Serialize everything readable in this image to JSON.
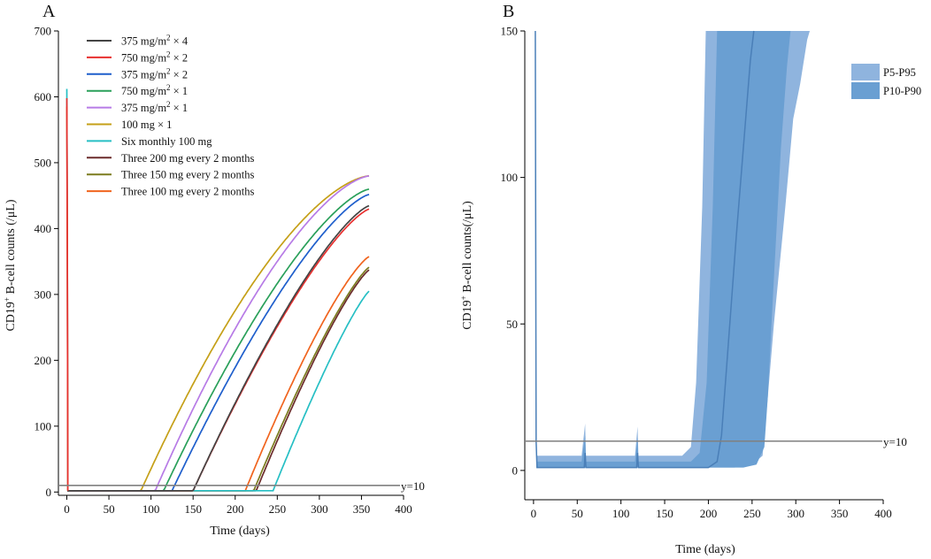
{
  "chart_data": [
    {
      "panel": "A",
      "type": "line",
      "xlabel": "Time (days)",
      "ylabel_main": "CD19",
      "ylabel_sup": "+",
      "ylabel_rest": " B-cell counts (/μL)",
      "xlim": [
        -10,
        400
      ],
      "ylim": [
        -5,
        700
      ],
      "xticks": [
        0,
        50,
        100,
        150,
        200,
        250,
        300,
        350,
        400
      ],
      "yticks": [
        0,
        100,
        200,
        300,
        400,
        500,
        600,
        700
      ],
      "reference_line": {
        "y": 10,
        "label": "y=10",
        "color": "#808080"
      },
      "legend_position": "top-left",
      "series": [
        {
          "name": "375 mg/m² × 4",
          "color": "#444444",
          "baseline": 2,
          "t_start": 150,
          "rise_shape": 1.35,
          "t_end": 360,
          "y_end": 435
        },
        {
          "name": "750 mg/m² × 2",
          "color": "#e8302f",
          "baseline": 2,
          "t_start": 150,
          "rise_shape": 1.35,
          "t_end": 360,
          "y_end": 430
        },
        {
          "name": "375 mg/m² × 2",
          "color": "#1f5fcc",
          "baseline": 2,
          "t_start": 125,
          "rise_shape": 1.4,
          "t_end": 360,
          "y_end": 452
        },
        {
          "name": "750 mg/m² × 1",
          "color": "#2aa05a",
          "baseline": 2,
          "t_start": 115,
          "rise_shape": 1.45,
          "t_end": 360,
          "y_end": 460
        },
        {
          "name": "375 mg/m² × 1",
          "color": "#b77be6",
          "baseline": 2,
          "t_start": 105,
          "rise_shape": 1.55,
          "t_end": 360,
          "y_end": 480
        },
        {
          "name": "100 mg × 1",
          "color": "#c5a018",
          "baseline": 2,
          "t_start": 88,
          "rise_shape": 1.6,
          "t_end": 360,
          "y_end": 480
        },
        {
          "name": "Six monthly 100 mg",
          "color": "#26bfc4",
          "baseline": 2,
          "t_start": 245,
          "rise_shape": 1.2,
          "t_end": 360,
          "y_end": 306
        },
        {
          "name": "Three 200 mg every 2 months",
          "color": "#6b2b2b",
          "baseline": 2,
          "t_start": 225,
          "rise_shape": 1.25,
          "t_end": 360,
          "y_end": 338
        },
        {
          "name": "Three 150 mg every 2 months",
          "color": "#7b7b1e",
          "baseline": 2,
          "t_start": 222,
          "rise_shape": 1.25,
          "t_end": 360,
          "y_end": 342
        },
        {
          "name": "Three 100 mg every 2 months",
          "color": "#f0641e",
          "baseline": 2,
          "t_start": 212,
          "rise_shape": 1.3,
          "t_end": 360,
          "y_end": 358
        }
      ],
      "initial_spikes": [
        {
          "color": "#26bfc4",
          "y0": 612
        },
        {
          "color": "#f0641e",
          "y0": 585
        },
        {
          "color": "#e8302f",
          "y0": 598
        }
      ]
    },
    {
      "panel": "B",
      "type": "area",
      "xlabel": "Time (days)",
      "ylabel": "CD19⁺ B-cell counts(/μL)",
      "ylabel_main": "CD19",
      "ylabel_sup": "+",
      "ylabel_rest": " B-cell counts(/μL)",
      "xlim": [
        -10,
        400
      ],
      "ylim": [
        -10,
        150
      ],
      "xticks": [
        0,
        50,
        100,
        150,
        200,
        250,
        300,
        350,
        400
      ],
      "yticks": [
        0,
        50,
        100,
        150
      ],
      "reference_line": {
        "y": 10,
        "label": "y=10",
        "color": "#808080"
      },
      "legend_position": "top-right",
      "legend": [
        {
          "name": "P5-P95",
          "color": "#8fb4de"
        },
        {
          "name": "P10-P90",
          "color": "#6a9fd2"
        }
      ],
      "bands": {
        "p5_p95": {
          "color": "#8fb4de",
          "upper": [
            [
              2,
              150
            ],
            [
              3,
              20
            ],
            [
              4,
              5
            ],
            [
              55,
              5
            ],
            [
              59,
              16
            ],
            [
              60,
              5
            ],
            [
              116,
              5
            ],
            [
              119,
              15
            ],
            [
              120,
              5
            ],
            [
              170,
              5
            ],
            [
              180,
              8
            ],
            [
              186,
              30
            ],
            [
              193,
              90
            ],
            [
              197,
              150
            ],
            [
              330,
              150
            ]
          ],
          "lower": [
            [
              2,
              150
            ],
            [
              3,
              8
            ],
            [
              4,
              1
            ],
            [
              230,
              1
            ],
            [
              250,
              2
            ],
            [
              262,
              5
            ],
            [
              268,
              25
            ],
            [
              275,
              50
            ],
            [
              288,
              90
            ],
            [
              297,
              120
            ],
            [
              305,
              132
            ],
            [
              313,
              147
            ],
            [
              316,
              150
            ]
          ]
        },
        "p10_p90": {
          "color": "#6a9fd2",
          "upper": [
            [
              2,
              150
            ],
            [
              3,
              14
            ],
            [
              4,
              3
            ],
            [
              55,
              3
            ],
            [
              59,
              12
            ],
            [
              60,
              3
            ],
            [
              116,
              3
            ],
            [
              119,
              11
            ],
            [
              120,
              3
            ],
            [
              180,
              3
            ],
            [
              190,
              6
            ],
            [
              198,
              30
            ],
            [
              205,
              90
            ],
            [
              210,
              150
            ],
            [
              310,
              150
            ]
          ],
          "lower": [
            [
              2,
              150
            ],
            [
              3,
              6
            ],
            [
              4,
              1
            ],
            [
              240,
              1
            ],
            [
              255,
              2
            ],
            [
              264,
              8
            ],
            [
              268,
              25
            ],
            [
              274,
              60
            ],
            [
              283,
              110
            ],
            [
              290,
              138
            ],
            [
              294,
              150
            ]
          ]
        }
      },
      "median": {
        "color": "#4a7fb8",
        "points": [
          [
            2,
            150
          ],
          [
            3,
            10
          ],
          [
            4,
            1
          ],
          [
            58,
            1
          ],
          [
            59,
            6
          ],
          [
            60,
            1
          ],
          [
            118,
            1
          ],
          [
            119,
            6
          ],
          [
            120,
            1
          ],
          [
            200,
            1
          ],
          [
            210,
            3
          ],
          [
            215,
            12
          ],
          [
            222,
            40
          ],
          [
            232,
            80
          ],
          [
            248,
            140
          ],
          [
            252,
            150
          ]
        ]
      }
    }
  ],
  "panel_labels": {
    "a": "A",
    "b": "B"
  }
}
